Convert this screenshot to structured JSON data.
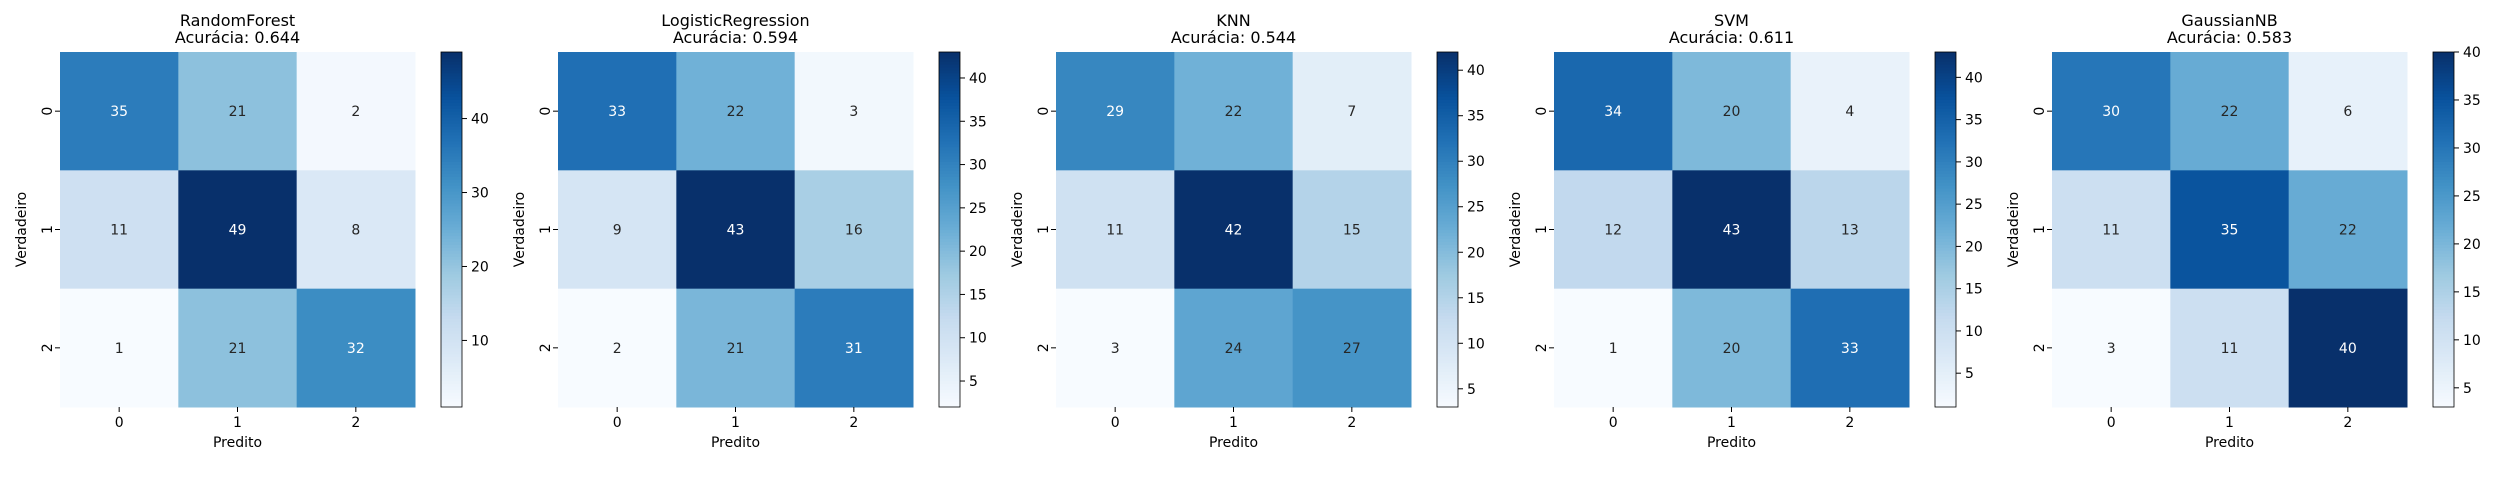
{
  "chart_data": [
    {
      "type": "heatmap",
      "title_line1": "RandomForest",
      "title_line2": "Acurácia: 0.644",
      "xlabel": "Predito",
      "ylabel": "Verdadeiro",
      "x_categories": [
        "0",
        "1",
        "2"
      ],
      "y_categories": [
        "0",
        "1",
        "2"
      ],
      "matrix": [
        [
          35,
          21,
          2
        ],
        [
          11,
          49,
          8
        ],
        [
          1,
          21,
          32
        ]
      ],
      "colorbar": {
        "min": 1,
        "max": 49,
        "ticks": [
          10,
          20,
          30,
          40
        ]
      },
      "colormap": "Blues"
    },
    {
      "type": "heatmap",
      "title_line1": "LogisticRegression",
      "title_line2": "Acurácia: 0.594",
      "xlabel": "Predito",
      "ylabel": "Verdadeiro",
      "x_categories": [
        "0",
        "1",
        "2"
      ],
      "y_categories": [
        "0",
        "1",
        "2"
      ],
      "matrix": [
        [
          33,
          22,
          3
        ],
        [
          9,
          43,
          16
        ],
        [
          2,
          21,
          31
        ]
      ],
      "colorbar": {
        "min": 2,
        "max": 43,
        "ticks": [
          5,
          10,
          15,
          20,
          25,
          30,
          35,
          40
        ]
      },
      "colormap": "Blues"
    },
    {
      "type": "heatmap",
      "title_line1": "KNN",
      "title_line2": "Acurácia: 0.544",
      "xlabel": "Predito",
      "ylabel": "Verdadeiro",
      "x_categories": [
        "0",
        "1",
        "2"
      ],
      "y_categories": [
        "0",
        "1",
        "2"
      ],
      "matrix": [
        [
          29,
          22,
          7
        ],
        [
          11,
          42,
          15
        ],
        [
          3,
          24,
          27
        ]
      ],
      "colorbar": {
        "min": 3,
        "max": 42,
        "ticks": [
          5,
          10,
          15,
          20,
          25,
          30,
          35,
          40
        ]
      },
      "colormap": "Blues"
    },
    {
      "type": "heatmap",
      "title_line1": "SVM",
      "title_line2": "Acurácia: 0.611",
      "xlabel": "Predito",
      "ylabel": "Verdadeiro",
      "x_categories": [
        "0",
        "1",
        "2"
      ],
      "y_categories": [
        "0",
        "1",
        "2"
      ],
      "matrix": [
        [
          34,
          20,
          4
        ],
        [
          12,
          43,
          13
        ],
        [
          1,
          20,
          33
        ]
      ],
      "colorbar": {
        "min": 1,
        "max": 43,
        "ticks": [
          5,
          10,
          15,
          20,
          25,
          30,
          35,
          40
        ]
      },
      "colormap": "Blues"
    },
    {
      "type": "heatmap",
      "title_line1": "GaussianNB",
      "title_line2": "Acurácia: 0.583",
      "xlabel": "Predito",
      "ylabel": "Verdadeiro",
      "x_categories": [
        "0",
        "1",
        "2"
      ],
      "y_categories": [
        "0",
        "1",
        "2"
      ],
      "matrix": [
        [
          30,
          22,
          6
        ],
        [
          11,
          35,
          22
        ],
        [
          3,
          11,
          40
        ]
      ],
      "colorbar": {
        "min": 3,
        "max": 40,
        "ticks": [
          5,
          10,
          15,
          20,
          25,
          30,
          35,
          40
        ]
      },
      "colormap": "Blues"
    }
  ]
}
